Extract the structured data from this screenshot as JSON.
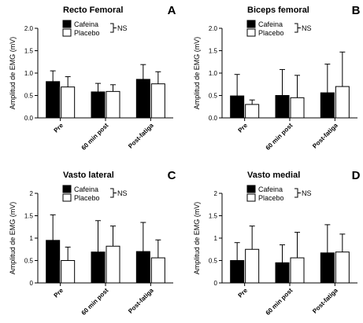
{
  "chart_data": [
    {
      "panel_letter": "A",
      "type": "bar",
      "title": "Recto Femoral",
      "ylabel": "Amplitud de EMG (mV)",
      "xlabel": "",
      "ylim": [
        0,
        2.0
      ],
      "yticks": [
        "0.0",
        "0.5",
        "1.0",
        "1.5",
        "2.0"
      ],
      "categories": [
        "Pre",
        "60 min post",
        "Post-fatiga"
      ],
      "series": [
        {
          "name": "Cafeina",
          "values": [
            0.81,
            0.58,
            0.86
          ],
          "errors": [
            0.24,
            0.19,
            0.33
          ],
          "color": "#000000"
        },
        {
          "name": "Placebo",
          "values": [
            0.69,
            0.59,
            0.76
          ],
          "errors": [
            0.23,
            0.15,
            0.27
          ],
          "color": "#ffffff"
        }
      ],
      "annotation": "NS",
      "legend": "top-center",
      "grid": false
    },
    {
      "panel_letter": "B",
      "type": "bar",
      "title": "Biceps femoral",
      "ylabel": "Amplitud de EMG (mV)",
      "xlabel": "",
      "ylim": [
        0,
        2.0
      ],
      "yticks": [
        "0.0",
        "0.5",
        "1.0",
        "1.5",
        "2.0"
      ],
      "categories": [
        "Pre",
        "60 min post",
        "Post-fatiga"
      ],
      "series": [
        {
          "name": "Cafeina",
          "values": [
            0.49,
            0.5,
            0.56
          ],
          "errors": [
            0.48,
            0.58,
            0.64
          ],
          "color": "#000000"
        },
        {
          "name": "Placebo",
          "values": [
            0.3,
            0.45,
            0.7
          ],
          "errors": [
            0.1,
            0.5,
            0.77
          ],
          "color": "#ffffff"
        }
      ],
      "annotation": "NS",
      "legend": "top-center",
      "grid": false
    },
    {
      "panel_letter": "C",
      "type": "bar",
      "title": "Vasto lateral",
      "ylabel": "Amplitud de EMG (mV)",
      "xlabel": "",
      "ylim": [
        0,
        2.0
      ],
      "yticks": [
        "0",
        "0.5",
        "1",
        "1.5",
        "2"
      ],
      "categories": [
        "Pre",
        "60 min post",
        "Post-fatiga"
      ],
      "series": [
        {
          "name": "Cafeina",
          "values": [
            0.95,
            0.69,
            0.7
          ],
          "errors": [
            0.57,
            0.7,
            0.65
          ],
          "color": "#000000"
        },
        {
          "name": "Placebo",
          "values": [
            0.5,
            0.82,
            0.56
          ],
          "errors": [
            0.3,
            0.45,
            0.4
          ],
          "color": "#ffffff"
        }
      ],
      "annotation": "NS",
      "legend": "top-center",
      "grid": false
    },
    {
      "panel_letter": "D",
      "type": "bar",
      "title": "Vasto medial",
      "ylabel": "Amplitud de EMG (mV)",
      "xlabel": "",
      "ylim": [
        0,
        2.0
      ],
      "yticks": [
        "0",
        "0.5",
        "1",
        "1.5",
        "2"
      ],
      "categories": [
        "Pre",
        "60 min post",
        "Post-fatiga"
      ],
      "series": [
        {
          "name": "Cafeina",
          "values": [
            0.5,
            0.45,
            0.67
          ],
          "errors": [
            0.4,
            0.4,
            0.63
          ],
          "color": "#000000"
        },
        {
          "name": "Placebo",
          "values": [
            0.75,
            0.56,
            0.69
          ],
          "errors": [
            0.52,
            0.57,
            0.4
          ],
          "color": "#ffffff"
        }
      ],
      "annotation": "NS",
      "legend": "top-center",
      "grid": false
    }
  ]
}
